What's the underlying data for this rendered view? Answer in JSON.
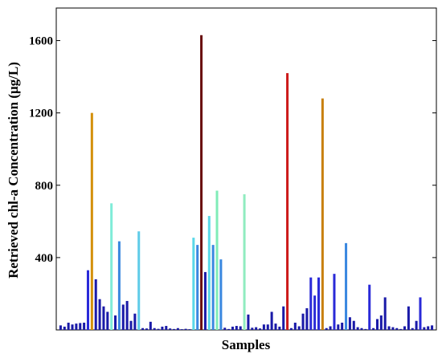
{
  "chart_data": {
    "type": "bar",
    "title": "",
    "xlabel": "Samples",
    "ylabel": "Retrieved chl-a Concentration (μg/L)",
    "ylim": [
      0,
      1780
    ],
    "yticks": [
      400,
      800,
      1200,
      1600
    ],
    "grid": false,
    "legend": "none",
    "bars": [
      {
        "x": 1,
        "value": 25,
        "color": "#1a1aa8"
      },
      {
        "x": 2,
        "value": 18,
        "color": "#1a1aa8"
      },
      {
        "x": 3,
        "value": 40,
        "color": "#1a1aa8"
      },
      {
        "x": 4,
        "value": 30,
        "color": "#1a1aa8"
      },
      {
        "x": 5,
        "value": 35,
        "color": "#1a1aa8"
      },
      {
        "x": 6,
        "value": 38,
        "color": "#1a1aa8"
      },
      {
        "x": 7,
        "value": 40,
        "color": "#1a1aa8"
      },
      {
        "x": 8,
        "value": 330,
        "color": "#2a2ad8"
      },
      {
        "x": 9,
        "value": 1200,
        "color": "#d4900c"
      },
      {
        "x": 10,
        "value": 280,
        "color": "#1a1aa8"
      },
      {
        "x": 11,
        "value": 170,
        "color": "#1a1aa8"
      },
      {
        "x": 12,
        "value": 130,
        "color": "#1a1aa8"
      },
      {
        "x": 13,
        "value": 100,
        "color": "#1a1aa8"
      },
      {
        "x": 14,
        "value": 700,
        "color": "#80ecd8"
      },
      {
        "x": 15,
        "value": 80,
        "color": "#1a1aa8"
      },
      {
        "x": 16,
        "value": 490,
        "color": "#3a88e0"
      },
      {
        "x": 17,
        "value": 140,
        "color": "#1a1aa8"
      },
      {
        "x": 18,
        "value": 160,
        "color": "#1a1aa8"
      },
      {
        "x": 19,
        "value": 50,
        "color": "#1a1aa8"
      },
      {
        "x": 20,
        "value": 90,
        "color": "#1a1aa8"
      },
      {
        "x": 21,
        "value": 545,
        "color": "#60cce8"
      },
      {
        "x": 22,
        "value": 10,
        "color": "#1a1aa8"
      },
      {
        "x": 23,
        "value": 8,
        "color": "#1a1aa8"
      },
      {
        "x": 24,
        "value": 45,
        "color": "#1a1aa8"
      },
      {
        "x": 25,
        "value": 10,
        "color": "#1a1aa8"
      },
      {
        "x": 26,
        "value": 6,
        "color": "#1a1aa8"
      },
      {
        "x": 27,
        "value": 18,
        "color": "#1a1aa8"
      },
      {
        "x": 28,
        "value": 22,
        "color": "#1a1aa8"
      },
      {
        "x": 29,
        "value": 8,
        "color": "#1a1aa8"
      },
      {
        "x": 30,
        "value": 5,
        "color": "#1a1aa8"
      },
      {
        "x": 31,
        "value": 10,
        "color": "#1a1aa8"
      },
      {
        "x": 32,
        "value": 4,
        "color": "#1a1aa8"
      },
      {
        "x": 33,
        "value": 6,
        "color": "#1a1aa8"
      },
      {
        "x": 34,
        "value": 4,
        "color": "#1a1aa8"
      },
      {
        "x": 35,
        "value": 510,
        "color": "#5ad8e8"
      },
      {
        "x": 36,
        "value": 470,
        "color": "#3a88e0"
      },
      {
        "x": 37,
        "value": 1630,
        "color": "#6a1010"
      },
      {
        "x": 38,
        "value": 320,
        "color": "#1a1aa8"
      },
      {
        "x": 39,
        "value": 630,
        "color": "#5ad8e8"
      },
      {
        "x": 40,
        "value": 470,
        "color": "#3a88e0"
      },
      {
        "x": 41,
        "value": 770,
        "color": "#80ecb8"
      },
      {
        "x": 42,
        "value": 390,
        "color": "#3a88e0"
      },
      {
        "x": 43,
        "value": 12,
        "color": "#1a1aa8"
      },
      {
        "x": 44,
        "value": 5,
        "color": "#1a1aa8"
      },
      {
        "x": 45,
        "value": 18,
        "color": "#1a1aa8"
      },
      {
        "x": 46,
        "value": 22,
        "color": "#1a1aa8"
      },
      {
        "x": 47,
        "value": 20,
        "color": "#1a1aa8"
      },
      {
        "x": 48,
        "value": 750,
        "color": "#90ecc0"
      },
      {
        "x": 49,
        "value": 85,
        "color": "#1a1aa8"
      },
      {
        "x": 50,
        "value": 12,
        "color": "#1a1aa8"
      },
      {
        "x": 51,
        "value": 15,
        "color": "#1a1aa8"
      },
      {
        "x": 52,
        "value": 8,
        "color": "#1a1aa8"
      },
      {
        "x": 53,
        "value": 30,
        "color": "#1a1aa8"
      },
      {
        "x": 54,
        "value": 30,
        "color": "#1a1aa8"
      },
      {
        "x": 55,
        "value": 100,
        "color": "#1a1aa8"
      },
      {
        "x": 56,
        "value": 35,
        "color": "#1a1aa8"
      },
      {
        "x": 57,
        "value": 18,
        "color": "#1a1aa8"
      },
      {
        "x": 58,
        "value": 130,
        "color": "#1a1aa8"
      },
      {
        "x": 59,
        "value": 1420,
        "color": "#cc1a1a"
      },
      {
        "x": 60,
        "value": 10,
        "color": "#1a1aa8"
      },
      {
        "x": 61,
        "value": 40,
        "color": "#1a1aa8"
      },
      {
        "x": 62,
        "value": 20,
        "color": "#1a1aa8"
      },
      {
        "x": 63,
        "value": 90,
        "color": "#1a1aa8"
      },
      {
        "x": 64,
        "value": 120,
        "color": "#1a1aa8"
      },
      {
        "x": 65,
        "value": 290,
        "color": "#2a2ad8"
      },
      {
        "x": 66,
        "value": 190,
        "color": "#2a2ad8"
      },
      {
        "x": 67,
        "value": 290,
        "color": "#2a2ad8"
      },
      {
        "x": 68,
        "value": 1280,
        "color": "#c88010"
      },
      {
        "x": 69,
        "value": 10,
        "color": "#1a1aa8"
      },
      {
        "x": 70,
        "value": 20,
        "color": "#1a1aa8"
      },
      {
        "x": 71,
        "value": 310,
        "color": "#2a2ad8"
      },
      {
        "x": 72,
        "value": 30,
        "color": "#1a1aa8"
      },
      {
        "x": 73,
        "value": 40,
        "color": "#1a1aa8"
      },
      {
        "x": 74,
        "value": 480,
        "color": "#3a88e0"
      },
      {
        "x": 75,
        "value": 70,
        "color": "#1a1aa8"
      },
      {
        "x": 76,
        "value": 50,
        "color": "#1a1aa8"
      },
      {
        "x": 77,
        "value": 15,
        "color": "#1a1aa8"
      },
      {
        "x": 78,
        "value": 10,
        "color": "#1a1aa8"
      },
      {
        "x": 79,
        "value": 5,
        "color": "#1a1aa8"
      },
      {
        "x": 80,
        "value": 250,
        "color": "#2a2ad8"
      },
      {
        "x": 81,
        "value": 10,
        "color": "#1a1aa8"
      },
      {
        "x": 82,
        "value": 60,
        "color": "#1a1aa8"
      },
      {
        "x": 83,
        "value": 80,
        "color": "#1a1aa8"
      },
      {
        "x": 84,
        "value": 180,
        "color": "#1a1aa8"
      },
      {
        "x": 85,
        "value": 20,
        "color": "#1a1aa8"
      },
      {
        "x": 86,
        "value": 15,
        "color": "#1a1aa8"
      },
      {
        "x": 87,
        "value": 10,
        "color": "#1a1aa8"
      },
      {
        "x": 88,
        "value": 5,
        "color": "#1a1aa8"
      },
      {
        "x": 89,
        "value": 20,
        "color": "#1a1aa8"
      },
      {
        "x": 90,
        "value": 130,
        "color": "#1a1aa8"
      },
      {
        "x": 91,
        "value": 10,
        "color": "#1a1aa8"
      },
      {
        "x": 92,
        "value": 50,
        "color": "#1a1aa8"
      },
      {
        "x": 93,
        "value": 180,
        "color": "#2a2ad8"
      },
      {
        "x": 94,
        "value": 15,
        "color": "#1a1aa8"
      },
      {
        "x": 95,
        "value": 20,
        "color": "#1a1aa8"
      },
      {
        "x": 96,
        "value": 25,
        "color": "#1a1aa8"
      }
    ]
  }
}
